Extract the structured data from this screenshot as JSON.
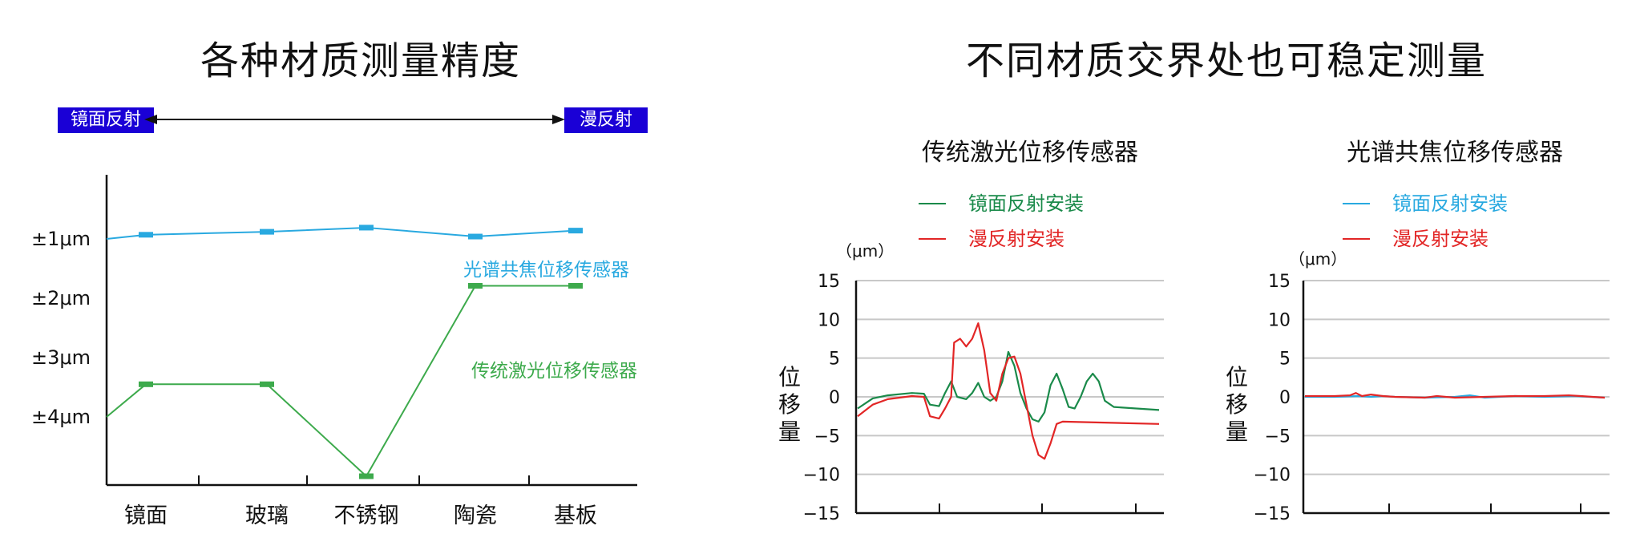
{
  "left": {
    "title": "各种材质测量精度",
    "badge_left": "镜面反射",
    "badge_right": "漫反射",
    "chart_data": {
      "type": "line",
      "categories": [
        "镜面",
        "玻璃",
        "不锈钢",
        "陶瓷",
        "基板"
      ],
      "y_tick_labels": [
        "±1μm",
        "±2μm",
        "±3μm",
        "±4μm"
      ],
      "ylim": [
        0,
        5
      ],
      "y_inverted": true,
      "series": [
        {
          "name": "光谱共焦位移传感器",
          "color": "#29a9e0",
          "values": [
            0.93,
            0.88,
            0.81,
            0.96,
            0.86
          ]
        },
        {
          "name": "传统激光位移传感器",
          "color": "#3daa4c",
          "values": [
            3.45,
            3.45,
            5.0,
            1.79,
            1.79
          ]
        }
      ],
      "series_start": [
        1.0,
        4.0
      ],
      "grid": false
    }
  },
  "right": {
    "title": "不同材质交界处也可稳定测量",
    "ylabel": "位移量",
    "unit": "（μm）",
    "charts": [
      {
        "subtitle": "传统激光位移传感器",
        "chart_data": {
          "type": "line",
          "yticks": [
            15,
            10,
            5,
            0,
            -5,
            -10,
            -15
          ],
          "ylim": [
            -15,
            15
          ],
          "xlim": [
            0,
            100
          ],
          "grid": true,
          "series": [
            {
              "name": "镜面反射安装",
              "color": "#1a8a4a",
              "points": [
                [
                  0,
                  -1.5
                ],
                [
                  5,
                  -0.2
                ],
                [
                  10,
                  0.2
                ],
                [
                  18,
                  0.5
                ],
                [
                  22,
                  0.4
                ],
                [
                  24,
                  -1
                ],
                [
                  27,
                  -1.2
                ],
                [
                  29,
                  0.5
                ],
                [
                  31,
                  2
                ],
                [
                  33,
                  0
                ],
                [
                  36,
                  -0.3
                ],
                [
                  38,
                  0.5
                ],
                [
                  40,
                  1.8
                ],
                [
                  42,
                  0
                ],
                [
                  44,
                  -0.5
                ],
                [
                  46,
                  0
                ],
                [
                  48,
                  2
                ],
                [
                  50,
                  5.8
                ],
                [
                  52,
                  4
                ],
                [
                  54,
                  0.5
                ],
                [
                  56,
                  -1.5
                ],
                [
                  58,
                  -2.9
                ],
                [
                  60,
                  -3.2
                ],
                [
                  62,
                  -2
                ],
                [
                  64,
                  1.5
                ],
                [
                  66,
                  3
                ],
                [
                  68,
                  1
                ],
                [
                  70,
                  -1.3
                ],
                [
                  72,
                  -1.5
                ],
                [
                  74,
                  0
                ],
                [
                  76,
                  2
                ],
                [
                  78,
                  3
                ],
                [
                  80,
                  2
                ],
                [
                  82,
                  -0.5
                ],
                [
                  85,
                  -1.3
                ],
                [
                  100,
                  -1.7
                ]
              ]
            },
            {
              "name": "漫反射安装",
              "color": "#e22626",
              "points": [
                [
                  0,
                  -2.5
                ],
                [
                  5,
                  -1
                ],
                [
                  10,
                  -0.3
                ],
                [
                  18,
                  0.1
                ],
                [
                  22,
                  0
                ],
                [
                  24,
                  -2.5
                ],
                [
                  27,
                  -2.8
                ],
                [
                  29,
                  -1.5
                ],
                [
                  31,
                  0
                ],
                [
                  32,
                  7
                ],
                [
                  34,
                  7.5
                ],
                [
                  36,
                  6.5
                ],
                [
                  38,
                  7.5
                ],
                [
                  40,
                  9.5
                ],
                [
                  42,
                  6
                ],
                [
                  44,
                  0.5
                ],
                [
                  46,
                  -0.5
                ],
                [
                  48,
                  3
                ],
                [
                  50,
                  5
                ],
                [
                  52,
                  5.2
                ],
                [
                  54,
                  3
                ],
                [
                  56,
                  -1
                ],
                [
                  58,
                  -5
                ],
                [
                  60,
                  -7.5
                ],
                [
                  62,
                  -8
                ],
                [
                  64,
                  -6
                ],
                [
                  66,
                  -3.5
                ],
                [
                  68,
                  -3.2
                ],
                [
                  100,
                  -3.5
                ]
              ]
            }
          ]
        }
      },
      {
        "subtitle": "光谱共焦位移传感器",
        "chart_data": {
          "type": "line",
          "yticks": [
            15,
            10,
            5,
            0,
            -5,
            -10,
            -15
          ],
          "ylim": [
            -15,
            15
          ],
          "xlim": [
            0,
            100
          ],
          "grid": true,
          "series": [
            {
              "name": "镜面反射安装",
              "color": "#29a9e0",
              "points": [
                [
                  0,
                  0
                ],
                [
                  10,
                  0
                ],
                [
                  18,
                  0.1
                ],
                [
                  22,
                  0
                ],
                [
                  26,
                  0.1
                ],
                [
                  30,
                  0
                ],
                [
                  40,
                  -0.1
                ],
                [
                  50,
                  0
                ],
                [
                  55,
                  0.2
                ],
                [
                  60,
                  -0.1
                ],
                [
                  70,
                  0.1
                ],
                [
                  80,
                  0
                ],
                [
                  90,
                  0.1
                ],
                [
                  100,
                  -0.1
                ]
              ]
            },
            {
              "name": "漫反射安装",
              "color": "#e22626",
              "points": [
                [
                  0,
                  0.1
                ],
                [
                  10,
                  0.1
                ],
                [
                  15,
                  0.2
                ],
                [
                  17,
                  0.5
                ],
                [
                  19,
                  0.1
                ],
                [
                  22,
                  0.3
                ],
                [
                  26,
                  0.1
                ],
                [
                  30,
                  0
                ],
                [
                  40,
                  -0.1
                ],
                [
                  44,
                  0.1
                ],
                [
                  50,
                  -0.1
                ],
                [
                  60,
                  0
                ],
                [
                  70,
                  0.1
                ],
                [
                  80,
                  0.1
                ],
                [
                  88,
                  0.2
                ],
                [
                  92,
                  0.1
                ],
                [
                  100,
                  -0.1
                ]
              ]
            }
          ]
        }
      }
    ]
  }
}
